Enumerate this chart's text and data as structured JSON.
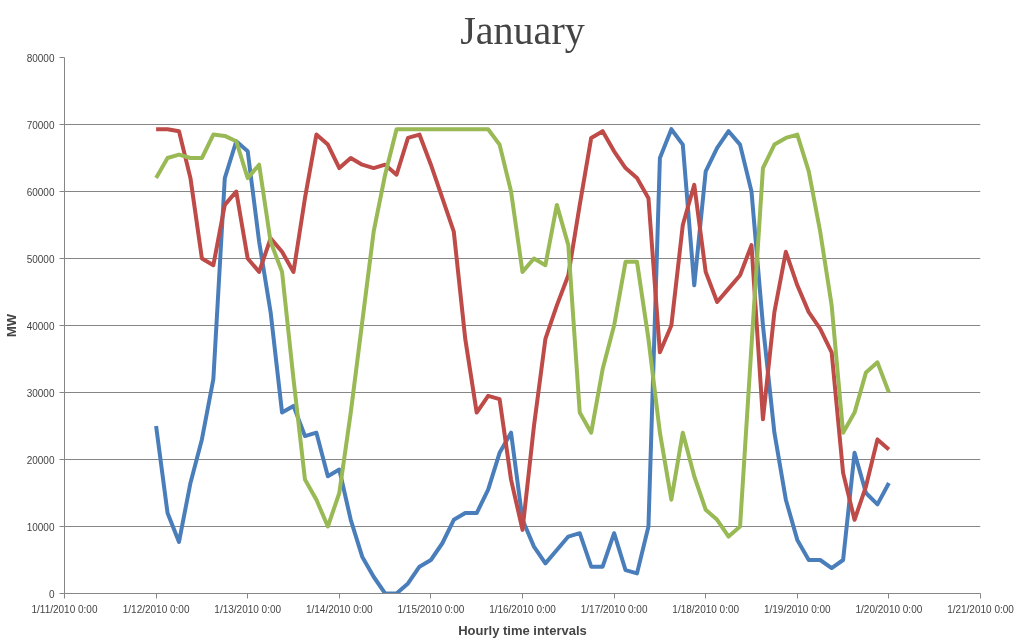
{
  "chart_data": {
    "type": "line",
    "title": "January",
    "xlabel": "Hourly time intervals",
    "ylabel": "MW",
    "x": [
      "2010-01-12T00:00",
      "2010-01-12T03:00",
      "2010-01-12T06:00",
      "2010-01-12T09:00",
      "2010-01-12T12:00",
      "2010-01-12T15:00",
      "2010-01-12T18:00",
      "2010-01-12T21:00",
      "2010-01-13T00:00",
      "2010-01-13T03:00",
      "2010-01-13T06:00",
      "2010-01-13T09:00",
      "2010-01-13T12:00",
      "2010-01-13T15:00",
      "2010-01-13T18:00",
      "2010-01-13T21:00",
      "2010-01-14T00:00",
      "2010-01-14T03:00",
      "2010-01-14T06:00",
      "2010-01-14T09:00",
      "2010-01-14T12:00",
      "2010-01-14T15:00",
      "2010-01-14T18:00",
      "2010-01-14T21:00",
      "2010-01-15T00:00",
      "2010-01-15T03:00",
      "2010-01-15T06:00",
      "2010-01-15T09:00",
      "2010-01-15T12:00",
      "2010-01-15T15:00",
      "2010-01-15T18:00",
      "2010-01-15T21:00",
      "2010-01-16T00:00",
      "2010-01-16T03:00",
      "2010-01-16T06:00",
      "2010-01-16T09:00",
      "2010-01-16T12:00",
      "2010-01-16T15:00",
      "2010-01-16T18:00",
      "2010-01-16T21:00",
      "2010-01-17T00:00",
      "2010-01-17T03:00",
      "2010-01-17T06:00",
      "2010-01-17T09:00",
      "2010-01-17T12:00",
      "2010-01-17T15:00",
      "2010-01-17T18:00",
      "2010-01-17T21:00",
      "2010-01-18T00:00",
      "2010-01-18T03:00",
      "2010-01-18T06:00",
      "2010-01-18T09:00",
      "2010-01-18T12:00",
      "2010-01-18T15:00",
      "2010-01-18T18:00",
      "2010-01-18T21:00",
      "2010-01-19T00:00",
      "2010-01-19T03:00",
      "2010-01-19T06:00",
      "2010-01-19T09:00",
      "2010-01-19T12:00",
      "2010-01-19T15:00",
      "2010-01-19T18:00",
      "2010-01-19T21:00",
      "2010-01-20T00:00"
    ],
    "series": [
      {
        "color": "#4a7ebb",
        "values": [
          25000,
          12000,
          7700,
          16500,
          23000,
          32000,
          62000,
          67500,
          66000,
          52500,
          42000,
          27000,
          28000,
          23500,
          24000,
          17500,
          18500,
          11000,
          5500,
          2500,
          0,
          0,
          1500,
          4000,
          5000,
          7500,
          11000,
          12000,
          12000,
          15500,
          21000,
          24000,
          11000,
          7000,
          4500,
          6500,
          8500,
          9000,
          4000,
          4000,
          9000,
          3500,
          3000,
          10000,
          65000,
          69300,
          67000,
          46000,
          63000,
          66500,
          69000,
          67000,
          60000,
          40000,
          24000,
          14000,
          8000,
          5000,
          5000,
          3800,
          5000,
          21000,
          15000,
          13300,
          16500
        ]
      },
      {
        "color": "#be4b48",
        "values": [
          69300,
          69300,
          69000,
          62000,
          50000,
          49000,
          58000,
          60000,
          50000,
          48000,
          53000,
          51000,
          48000,
          59000,
          68500,
          67000,
          63500,
          65000,
          64000,
          63500,
          64000,
          62500,
          68000,
          68500,
          64000,
          59000,
          54000,
          38000,
          27000,
          29500,
          29000,
          17000,
          9500,
          25000,
          38000,
          43000,
          47500,
          58000,
          68000,
          69000,
          66000,
          63500,
          62000,
          59000,
          36000,
          40000,
          55000,
          61000,
          48000,
          43500,
          45500,
          47500,
          52000,
          26000,
          42000,
          51000,
          46000,
          42000,
          39500,
          36000,
          18000,
          11000,
          16000,
          23000,
          21500
        ]
      },
      {
        "color": "#98b954",
        "values": [
          62000,
          65000,
          65500,
          65000,
          65000,
          68500,
          68300,
          67500,
          62000,
          64000,
          52500,
          48000,
          32000,
          17000,
          14000,
          10000,
          15000,
          27000,
          40500,
          54000,
          62500,
          69300,
          69300,
          69300,
          69300,
          69300,
          69300,
          69300,
          69300,
          69300,
          67000,
          60000,
          48000,
          50000,
          49000,
          58000,
          52000,
          27000,
          24000,
          33500,
          40000,
          49500,
          49500,
          38000,
          24000,
          14000,
          24000,
          17500,
          12500,
          11000,
          8500,
          10000,
          37000,
          63500,
          67000,
          68000,
          68500,
          63000,
          54000,
          43000,
          24000,
          27000,
          33000,
          34500,
          30000
        ]
      }
    ],
    "xlim": [
      "2010-01-11T00:00",
      "2010-01-21T00:00"
    ],
    "xticks": [
      {
        "value": "2010-01-11T00:00",
        "label": "1/11/2010 0:00"
      },
      {
        "value": "2010-01-12T00:00",
        "label": "1/12/2010 0:00"
      },
      {
        "value": "2010-01-13T00:00",
        "label": "1/13/2010 0:00"
      },
      {
        "value": "2010-01-14T00:00",
        "label": "1/14/2010 0:00"
      },
      {
        "value": "2010-01-15T00:00",
        "label": "1/15/2010 0:00"
      },
      {
        "value": "2010-01-16T00:00",
        "label": "1/16/2010 0:00"
      },
      {
        "value": "2010-01-17T00:00",
        "label": "1/17/2010 0:00"
      },
      {
        "value": "2010-01-18T00:00",
        "label": "1/18/2010 0:00"
      },
      {
        "value": "2010-01-19T00:00",
        "label": "1/19/2010 0:00"
      },
      {
        "value": "2010-01-20T00:00",
        "label": "1/20/2010 0:00"
      },
      {
        "value": "2010-01-21T00:00",
        "label": "1/21/2010 0:00"
      }
    ],
    "ylim": [
      0,
      80000
    ],
    "yticks": [
      0,
      10000,
      20000,
      30000,
      40000,
      50000,
      60000,
      70000,
      80000
    ],
    "grid": "y",
    "marker": "none",
    "line_style": "solid"
  }
}
